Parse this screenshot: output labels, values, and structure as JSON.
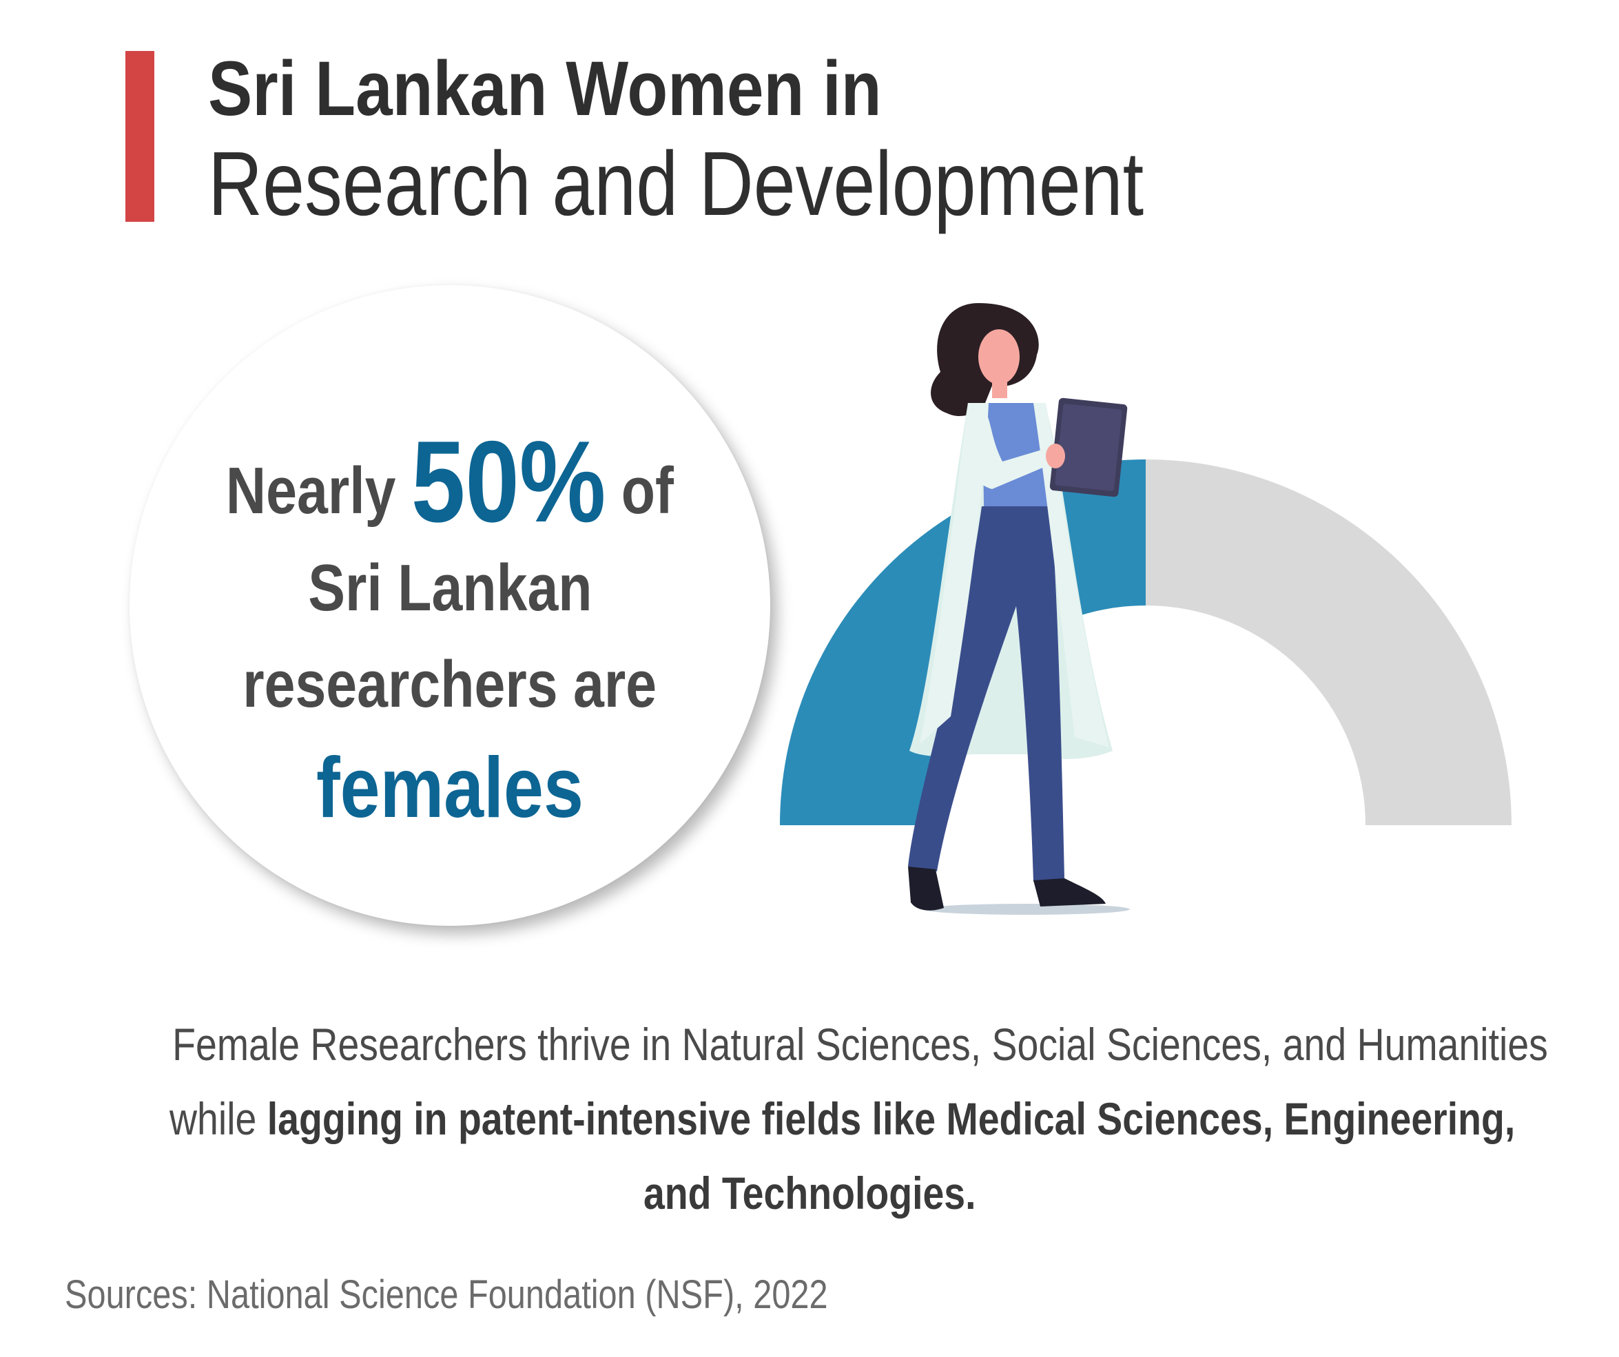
{
  "header": {
    "title_bold": "Sri Lankan Women in",
    "title_light": "Research and Development",
    "accent_color": "#d34545"
  },
  "stat": {
    "word_nearly": "Nearly",
    "percent": "50%",
    "word_of": "of",
    "line_2": "Sri Lankan",
    "line_3": "researchers are",
    "line_4": "females",
    "highlight_color": "#0d6593"
  },
  "gauge": {
    "filled_fraction": 0.5,
    "filled_color": "#2b8cb8",
    "empty_color": "#d9d9d9"
  },
  "illustration": {
    "subject": "female researcher in lab coat holding clipboard"
  },
  "paragraph": {
    "line_1": "Female Researchers thrive in Natural Sciences, Social Sciences, and Humanities",
    "line_2_prefix": "while ",
    "line_2_bold": "lagging in patent-intensive fields like Medical Sciences, Engineering,",
    "line_3_bold": "and Technologies."
  },
  "source": {
    "text": "Sources: National Science Foundation (NSF), 2022"
  }
}
